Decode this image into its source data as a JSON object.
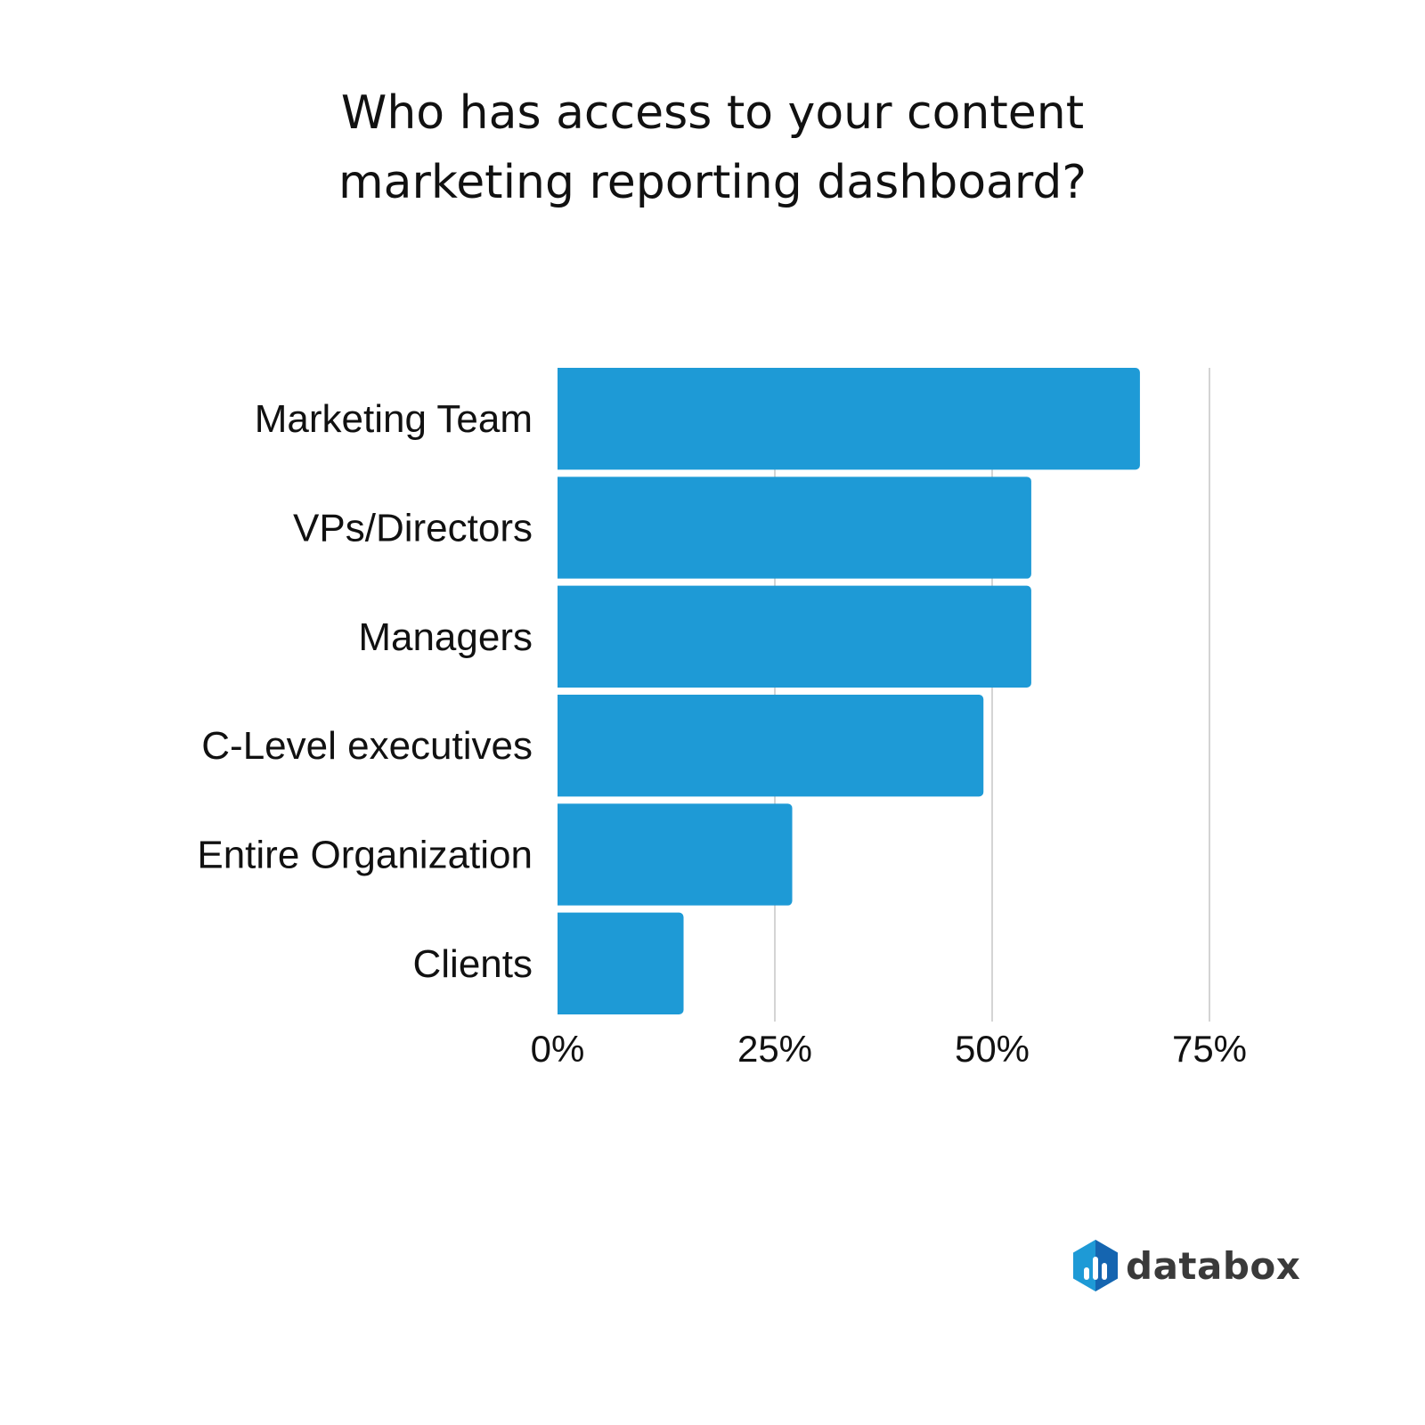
{
  "title_lines": [
    "Who has access to your content",
    "marketing reporting dashboard?"
  ],
  "brand": {
    "name": "databox",
    "accent": "#1e9ad6",
    "logo_dark": "#1565b0"
  },
  "chart_data": {
    "type": "bar",
    "orientation": "horizontal",
    "categories": [
      "Marketing Team",
      "VPs/Directors",
      "Managers",
      "C-Level executives",
      "Entire Organization",
      "Clients"
    ],
    "values": [
      67,
      54.5,
      54.5,
      49,
      27,
      14.5
    ],
    "xticks": [
      "0%",
      "25%",
      "50%",
      "75%"
    ],
    "xlim": [
      0,
      75
    ],
    "unit": "%",
    "grid": true,
    "bar_color": "#1e9ad6",
    "grid_color": "#bdbdbd"
  }
}
